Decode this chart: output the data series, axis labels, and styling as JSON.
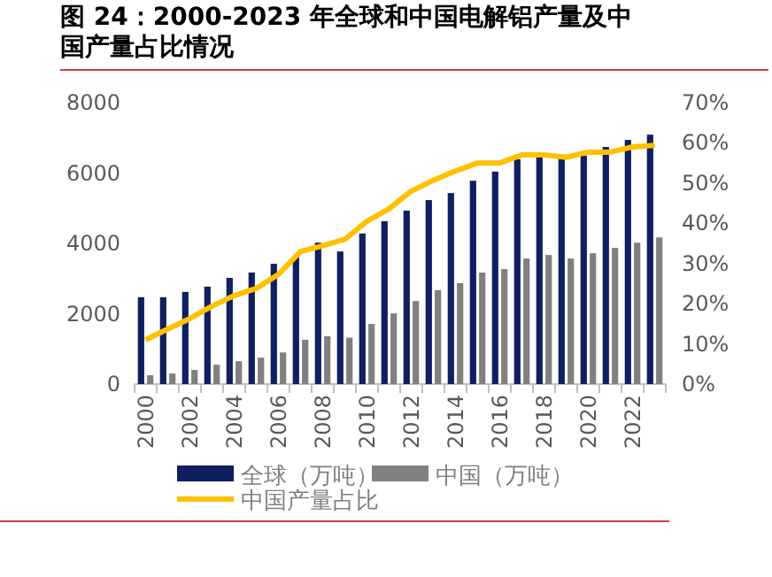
{
  "chart_data": {
    "type": "bar",
    "title": "图 24：2000-2023 年全球和中国电解铝产量及中国产量占比情况",
    "categories": [
      "2000",
      null,
      "2002",
      null,
      "2004",
      null,
      "2006",
      null,
      "2008",
      null,
      "2010",
      null,
      "2012",
      null,
      "2014",
      null,
      "2016",
      null,
      "2018",
      null,
      "2020",
      null,
      "2022",
      null
    ],
    "series": [
      {
        "name": "全球（万吨）",
        "color": "#0f1f5f",
        "values": [
          2470,
          2470,
          2620,
          2770,
          3020,
          3170,
          3420,
          3620,
          4020,
          3770,
          4280,
          4630,
          4930,
          5230,
          5430,
          5780,
          6040,
          6390,
          6440,
          6390,
          6490,
          6740,
          6940,
          7090
        ]
      },
      {
        "name": "中国（万吨）",
        "color": "#808080",
        "values": [
          250,
          300,
          400,
          550,
          650,
          750,
          900,
          1260,
          1360,
          1320,
          1710,
          2010,
          2360,
          2670,
          2870,
          3170,
          3270,
          3570,
          3670,
          3570,
          3720,
          3870,
          4020,
          4170
        ]
      },
      {
        "name": "中国产量占比",
        "type": "line",
        "axis": "y2",
        "color": "#ffc000",
        "values": [
          11,
          13.7,
          16.3,
          19.4,
          22,
          23.8,
          27.3,
          33,
          34.4,
          36,
          40.5,
          43.6,
          48,
          50.7,
          53,
          55,
          55,
          57,
          57,
          56.4,
          57.7,
          57.7,
          59,
          59.4
        ]
      }
    ],
    "ylim": [
      0,
      8000
    ],
    "yticks": [
      0,
      2000,
      4000,
      6000,
      8000
    ],
    "y2lim": [
      0,
      70
    ],
    "y2ticks": [
      {
        "value": 0,
        "label": "0%"
      },
      {
        "value": 10,
        "label": "10%"
      },
      {
        "value": 20,
        "label": "20%"
      },
      {
        "value": 30,
        "label": "30%"
      },
      {
        "value": 40,
        "label": "40%"
      },
      {
        "value": 50,
        "label": "50%"
      },
      {
        "value": 60,
        "label": "60%"
      },
      {
        "value": 70,
        "label": "70%"
      }
    ],
    "grid": false,
    "legend": "bottom"
  }
}
